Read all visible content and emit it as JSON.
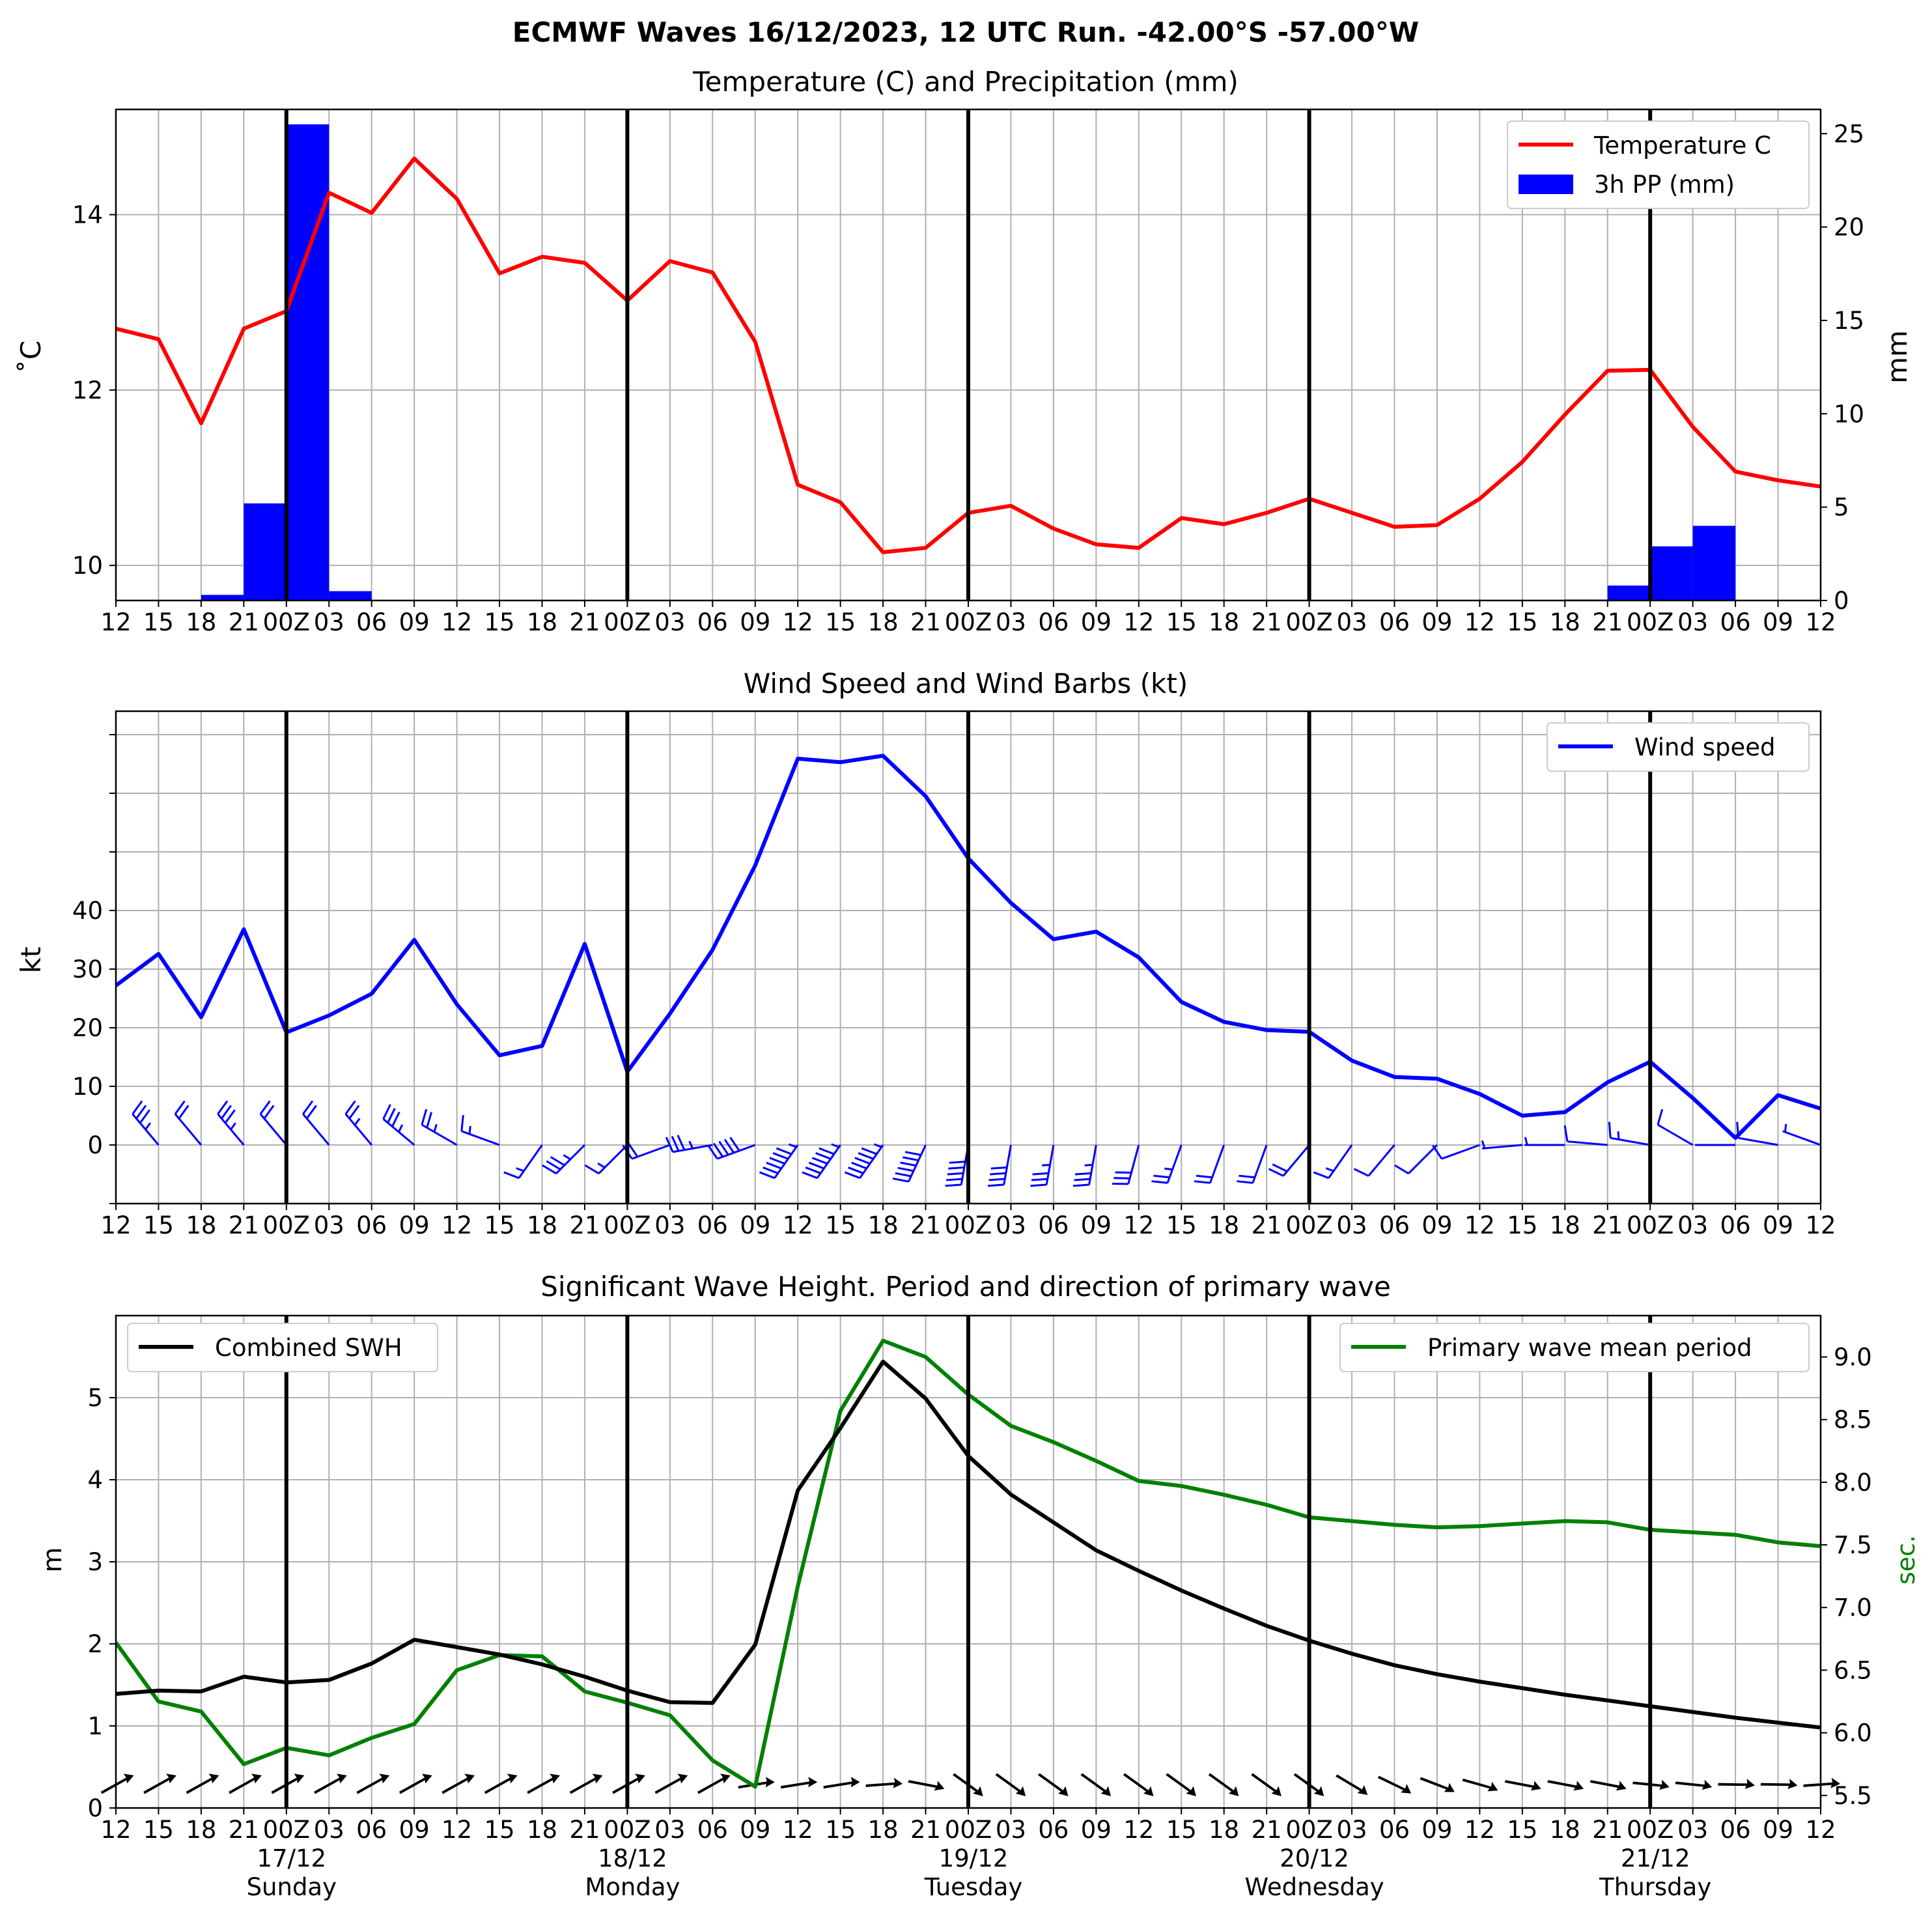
{
  "figure_title": "ECMWF Waves 16/12/2023, 12 UTC Run. -42.00°S -57.00°W",
  "x_ticks": [
    "12",
    "15",
    "18",
    "21",
    "00Z",
    "03",
    "06",
    "09",
    "12",
    "15",
    "18",
    "21",
    "00Z",
    "03",
    "06",
    "09",
    "12",
    "15",
    "18",
    "21",
    "00Z",
    "03",
    "06",
    "09",
    "12",
    "15",
    "18",
    "21",
    "00Z",
    "03",
    "06",
    "09",
    "12",
    "15",
    "18",
    "21",
    "00Z",
    "03",
    "06",
    "09",
    "12"
  ],
  "day_labels": [
    {
      "date": "17/12",
      "day": "Sunday"
    },
    {
      "date": "18/12",
      "day": "Monday"
    },
    {
      "date": "19/12",
      "day": "Tuesday"
    },
    {
      "date": "20/12",
      "day": "Wednesday"
    },
    {
      "date": "21/12",
      "day": "Thursday"
    }
  ],
  "colors": {
    "temperature": "#ff0000",
    "precip": "#0000ff",
    "wind": "#0000ff",
    "swh": "#000000",
    "period": "#008000",
    "grid": "#b0b0b0"
  },
  "chart_data": [
    {
      "type": "line",
      "title": "Temperature (C) and Precipitation (mm)",
      "ylabel": "$^\\circ$C",
      "ylabel_display": "˚C",
      "y2label": "mm",
      "ylim": [
        9.6,
        15.2
      ],
      "y_ticks": [
        "10",
        "12",
        "14"
      ],
      "y2lim": [
        0,
        26.3
      ],
      "y2_ticks": [
        "0",
        "5",
        "10",
        "15",
        "20",
        "25"
      ],
      "legend": "top-right",
      "series": [
        {
          "name": "Temperature C",
          "values": [
            12.7,
            12.58,
            11.62,
            12.7,
            12.9,
            14.25,
            14.02,
            14.64,
            14.18,
            13.33,
            13.52,
            13.45,
            13.02,
            13.47,
            13.34,
            12.55,
            10.92,
            10.72,
            10.15,
            10.2,
            10.6,
            10.68,
            10.42,
            10.24,
            10.2,
            10.54,
            10.47,
            10.6,
            10.76,
            10.6,
            10.44,
            10.46,
            10.76,
            11.18,
            11.72,
            12.22,
            12.23,
            11.58,
            11.07,
            10.97,
            10.9
          ]
        },
        {
          "name": "3h PP (mm)",
          "type": "bar",
          "values": [
            0,
            0,
            0,
            0.3,
            5.2,
            25.5,
            0.5,
            0,
            0,
            0,
            0,
            0,
            0,
            0,
            0,
            0,
            0,
            0,
            0,
            0,
            0,
            0,
            0,
            0,
            0,
            0,
            0,
            0,
            0,
            0,
            0,
            0,
            0,
            0,
            0,
            0.05,
            0.8,
            2.9,
            4.0,
            0,
            0
          ]
        }
      ]
    },
    {
      "type": "line",
      "title": "Wind Speed and Wind Barbs (kt)",
      "ylabel": "kt",
      "ylim": [
        -10,
        74
      ],
      "y_ticks": [
        "0",
        "10",
        "20",
        "30",
        "40"
      ],
      "legend": "top-right",
      "series": [
        {
          "name": "Wind speed",
          "values": [
            27.2,
            32.6,
            21.8,
            36.8,
            19.2,
            22.1,
            25.8,
            35.0,
            24.0,
            15.3,
            16.9,
            34.3,
            12.5,
            22.4,
            33.3,
            47.7,
            65.9,
            65.3,
            66.4,
            59.5,
            48.9,
            41.3,
            35.1,
            36.4,
            32.0,
            24.4,
            21.0,
            19.6,
            19.3,
            14.4,
            11.6,
            11.3,
            8.7,
            5.0,
            5.6,
            10.7,
            14.2,
            8.0,
            1.2,
            8.5,
            6.2
          ]
        },
        {
          "name": "wind_dir_deg",
          "values": [
            320,
            320,
            320,
            320,
            320,
            320,
            320,
            310,
            300,
            290,
            215,
            225,
            225,
            250,
            260,
            250,
            215,
            215,
            215,
            205,
            190,
            190,
            190,
            190,
            195,
            200,
            200,
            200,
            220,
            215,
            220,
            225,
            250,
            265,
            270,
            275,
            280,
            300,
            270,
            280,
            290
          ]
        }
      ]
    },
    {
      "type": "line",
      "title": "Significant Wave Height. Period and direction of primary wave",
      "ylabel": "m",
      "y2label": "sec.",
      "ylim": [
        0,
        6
      ],
      "y_ticks": [
        "0",
        "1",
        "2",
        "3",
        "4",
        "5"
      ],
      "y2lim": [
        5.4,
        9.33
      ],
      "y2_ticks": [
        "5.5",
        "6.0",
        "6.5",
        "7.0",
        "7.5",
        "8.0",
        "8.5",
        "9.0"
      ],
      "legend": "top-left (SWH), top-right (period)",
      "series": [
        {
          "name": "Combined SWH",
          "values": [
            1.39,
            1.43,
            1.42,
            1.6,
            1.53,
            1.56,
            1.76,
            2.05,
            1.96,
            1.87,
            1.75,
            1.6,
            1.43,
            1.29,
            1.28,
            1.99,
            3.87,
            4.63,
            5.44,
            4.99,
            4.29,
            3.82,
            3.48,
            3.14,
            2.89,
            2.65,
            2.43,
            2.22,
            2.04,
            1.88,
            1.74,
            1.63,
            1.54,
            1.46,
            1.38,
            1.31,
            1.24,
            1.17,
            1.1,
            1.04,
            0.98
          ]
        },
        {
          "name": "Primary wave mean period",
          "values": [
            6.72,
            6.25,
            6.17,
            5.75,
            5.88,
            5.82,
            5.96,
            6.07,
            6.5,
            6.62,
            6.61,
            6.33,
            6.24,
            6.14,
            5.78,
            5.57,
            7.17,
            8.57,
            9.13,
            9.0,
            8.7,
            8.45,
            8.32,
            8.17,
            8.01,
            7.97,
            7.9,
            7.82,
            7.72,
            7.69,
            7.66,
            7.64,
            7.65,
            7.67,
            7.69,
            7.68,
            7.62,
            7.6,
            7.58,
            7.52,
            7.49
          ]
        },
        {
          "name": "wave_dir_deg",
          "values": [
            250,
            250,
            250,
            250,
            250,
            250,
            250,
            250,
            250,
            250,
            250,
            250,
            250,
            250,
            250,
            270,
            270,
            270,
            275,
            290,
            315,
            315,
            315,
            315,
            315,
            315,
            315,
            315,
            315,
            310,
            305,
            300,
            295,
            290,
            290,
            290,
            285,
            285,
            280,
            280,
            275
          ]
        }
      ]
    }
  ]
}
